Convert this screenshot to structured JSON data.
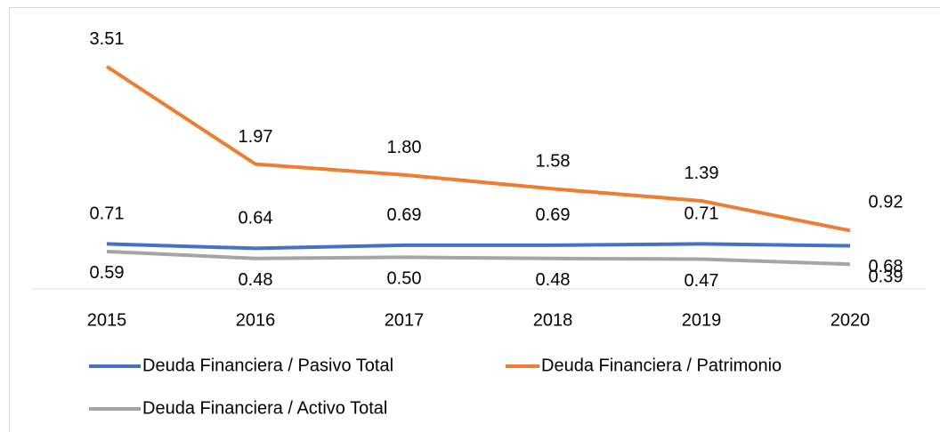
{
  "chart_data": {
    "type": "line",
    "categories": [
      "2015",
      "2016",
      "2017",
      "2018",
      "2019",
      "2020"
    ],
    "series": [
      {
        "name": "Deuda Financiera / Pasivo Total",
        "color": "#4472c4",
        "values": [
          0.71,
          0.64,
          0.69,
          0.69,
          0.71,
          0.68
        ],
        "value_labels": [
          "0.71",
          "0.64",
          "0.69",
          "0.69",
          "0.71",
          "0.68"
        ]
      },
      {
        "name": "Deuda Financiera / Patrimonio",
        "color": "#ed7d31",
        "values": [
          3.51,
          1.97,
          1.8,
          1.58,
          1.39,
          0.92
        ],
        "value_labels": [
          "3.51",
          "1.97",
          "1.80",
          "1.58",
          "1.39",
          "0.92"
        ]
      },
      {
        "name": "Deuda Financiera / Activo Total",
        "color": "#a5a5a5",
        "values": [
          0.59,
          0.48,
          0.5,
          0.48,
          0.47,
          0.39
        ],
        "value_labels": [
          "0.59",
          "0.48",
          "0.50",
          "0.48",
          "0.47",
          "0.39"
        ]
      }
    ],
    "ylim": [
      0,
      4
    ]
  }
}
